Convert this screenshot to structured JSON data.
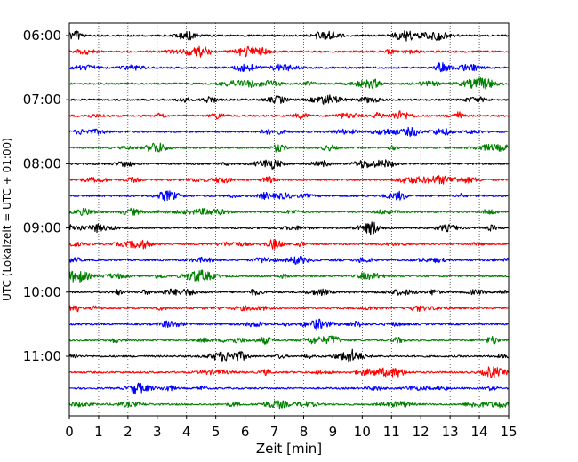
{
  "chart_data": {
    "type": "line",
    "xlabel": "Zeit  [min]",
    "ylabel": "UTC (Lokalzeit = UTC + 01:00)",
    "xlim": [
      0,
      15
    ],
    "x_ticks": [
      "0",
      "1",
      "2",
      "3",
      "4",
      "5",
      "6",
      "7",
      "8",
      "9",
      "10",
      "11",
      "12",
      "13",
      "14",
      "15"
    ],
    "y_ticks": [
      {
        "label": "06:00",
        "trace_index": 0
      },
      {
        "label": "07:00",
        "trace_index": 4
      },
      {
        "label": "08:00",
        "trace_index": 8
      },
      {
        "label": "09:00",
        "trace_index": 12
      },
      {
        "label": "10:00",
        "trace_index": 16
      },
      {
        "label": "11:00",
        "trace_index": 20
      }
    ],
    "trace_count": 24,
    "trace_interval_minutes": 15,
    "trace_color_cycle": [
      "#000000",
      "#ff0000",
      "#0000ff",
      "#008000"
    ],
    "grid": "vertical dotted lines at each minute"
  }
}
